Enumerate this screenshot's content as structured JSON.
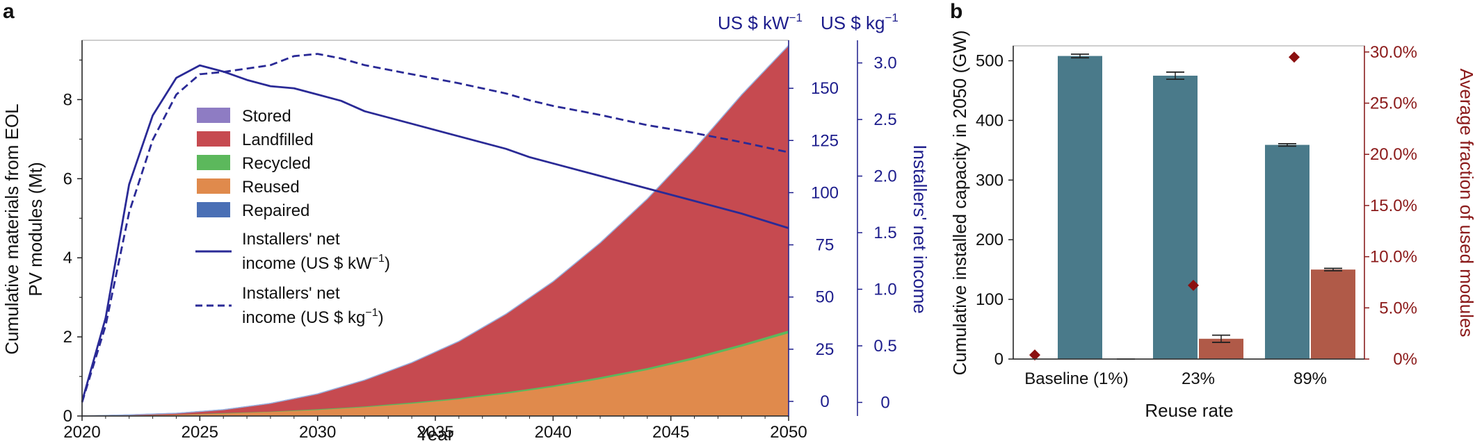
{
  "panel_a": {
    "label": "a",
    "header_kw": "US $ kW",
    "header_kg": "US $ kg",
    "header_sup": "−1",
    "axis_title_right": "Installers' net income",
    "legend": {
      "stored": "Stored",
      "landfilled": "Landfilled",
      "recycled": "Recycled",
      "reused": "Reused",
      "repaired": "Repaired",
      "kw_line1": "Installers' net",
      "kw_line2": "income (US $ kW",
      "kw_sup": "−1",
      "kw_close": ")",
      "kg_line1": "Installers' net",
      "kg_line2": "income (US $ kg",
      "kg_sup": "−1",
      "kg_close": ")"
    }
  },
  "panel_b": {
    "label": "b"
  },
  "colors": {
    "stored": "#8e7cc3",
    "landfilled": "#c64a50",
    "recycled": "#5cb85c",
    "reused": "#e08a4c",
    "repaired": "#4a6fb5",
    "income": "#2a2a96",
    "bar_capacity": "#4a7a8a",
    "bar_fraction": "#b05a48",
    "diamond": "#8b1010",
    "red_axis": "#8b1a1a",
    "blue_axis": "#1d1d8c"
  },
  "chart_data": [
    {
      "type": "area",
      "title": "",
      "xlabel": "Year",
      "ylabel_line1": "Cumulative materials from EOL",
      "ylabel_line2": "PV modules (Mt)",
      "xlim": [
        2020,
        2050
      ],
      "ylim": [
        0,
        9.5
      ],
      "xticks": [
        "2020",
        "2025",
        "2030",
        "2035",
        "2040",
        "2045",
        "2050"
      ],
      "yticks": [
        "0",
        "2",
        "4",
        "6",
        "8"
      ],
      "x": [
        2020,
        2022,
        2024,
        2026,
        2028,
        2030,
        2032,
        2034,
        2036,
        2038,
        2040,
        2042,
        2044,
        2046,
        2048,
        2050
      ],
      "series": [
        {
          "name": "Reused",
          "values": [
            0,
            0.02,
            0.04,
            0.07,
            0.11,
            0.16,
            0.23,
            0.32,
            0.43,
            0.57,
            0.74,
            0.94,
            1.17,
            1.44,
            1.76,
            2.1
          ]
        },
        {
          "name": "Recycled",
          "values": [
            0,
            0,
            0,
            0.01,
            0.01,
            0.02,
            0.02,
            0.03,
            0.03,
            0.04,
            0.04,
            0.05,
            0.05,
            0.06,
            0.06,
            0.07
          ]
        },
        {
          "name": "Landfilled",
          "values": [
            0,
            0.01,
            0.03,
            0.08,
            0.2,
            0.38,
            0.66,
            1.0,
            1.43,
            1.97,
            2.62,
            3.39,
            4.27,
            5.25,
            6.3,
            7.2
          ]
        },
        {
          "name": "Stored",
          "values": [
            0,
            0,
            0,
            0,
            0,
            0,
            0,
            0,
            0,
            0,
            0,
            0,
            0,
            0,
            0,
            0
          ]
        },
        {
          "name": "Repaired",
          "values": [
            0,
            0,
            0,
            0,
            0,
            0,
            0,
            0,
            0,
            0,
            0,
            0,
            0,
            0,
            0,
            0
          ]
        }
      ],
      "income_axes": {
        "kw": {
          "label": "US $ kW−1",
          "ticks": [
            0,
            25,
            50,
            75,
            100,
            125,
            150
          ],
          "range": [
            -7,
            173
          ]
        },
        "kg": {
          "label": "US $ kg−1",
          "ticks": [
            "0",
            "0.5",
            "1.0",
            "1.5",
            "2.0",
            "2.5",
            "3.0"
          ],
          "tick_values": [
            0,
            0.5,
            1.0,
            1.5,
            2.0,
            2.5,
            3.0
          ],
          "range": [
            -0.12,
            3.2
          ]
        }
      },
      "income_series": [
        {
          "name": "Installers' net income (US $ kW−1)",
          "axis": "kw",
          "style": "solid",
          "x": [
            2020,
            2021,
            2022,
            2023,
            2024,
            2025,
            2026,
            2027,
            2028,
            2029,
            2030,
            2031,
            2032,
            2034,
            2036,
            2038,
            2039,
            2040,
            2042,
            2044,
            2046,
            2048,
            2050
          ],
          "values": [
            0,
            40,
            104,
            137,
            155,
            161,
            158,
            154,
            151,
            150,
            147,
            144,
            139,
            133,
            127,
            121,
            117,
            114,
            108,
            102,
            96,
            90,
            83
          ]
        },
        {
          "name": "Installers' net income (US $ kg−1)",
          "axis": "kg",
          "style": "dashed",
          "x": [
            2020,
            2021,
            2022,
            2023,
            2024,
            2025,
            2026,
            2027,
            2028,
            2029,
            2030,
            2031,
            2032,
            2034,
            2036,
            2038,
            2039,
            2040,
            2042,
            2044,
            2046,
            2048,
            2050
          ],
          "values": [
            0,
            0.68,
            1.68,
            2.32,
            2.72,
            2.9,
            2.92,
            2.95,
            2.98,
            3.06,
            3.08,
            3.04,
            2.98,
            2.9,
            2.82,
            2.73,
            2.67,
            2.62,
            2.54,
            2.45,
            2.38,
            2.3,
            2.21
          ]
        }
      ]
    },
    {
      "type": "bar",
      "title": "",
      "xlabel": "Reuse rate",
      "ylabel": "Cumulative installed capacity in 2050 (GW)",
      "ylabel_right": "Average fraction of used modules",
      "categories": [
        "Baseline (1%)",
        "23%",
        "89%"
      ],
      "ylim": [
        0,
        525
      ],
      "ylim_right": [
        0,
        30.6
      ],
      "yticks": [
        0,
        100,
        200,
        300,
        400,
        500
      ],
      "yticks_right": [
        "0%",
        "5.0%",
        "10.0%",
        "15.0%",
        "20.0%",
        "25.0%",
        "30.0%"
      ],
      "yticks_right_values": [
        0,
        5,
        10,
        15,
        20,
        25,
        30
      ],
      "series": [
        {
          "name": "Cumulative installed capacity (GW)",
          "axis": "left",
          "values": [
            508,
            475,
            359
          ],
          "errors": [
            3,
            6,
            2
          ]
        },
        {
          "name": "Used modules capacity (GW)",
          "axis": "left",
          "values": [
            0,
            34,
            150
          ],
          "errors": [
            0,
            6,
            2
          ]
        },
        {
          "name": "Average fraction of used modules (%)",
          "axis": "right",
          "type": "diamond",
          "values": [
            0.4,
            7.2,
            29.5
          ]
        }
      ]
    }
  ]
}
